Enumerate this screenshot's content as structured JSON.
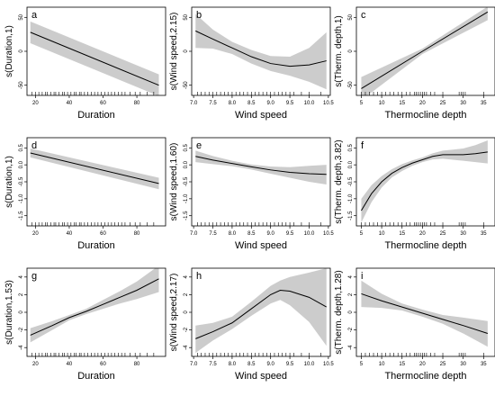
{
  "figure": {
    "background": "#ffffff",
    "band_color": "#cccccc",
    "line_color": "#000000"
  },
  "chart_data": [
    {
      "type": "line",
      "panel": "a",
      "ylabel": "s(Duration,1)",
      "xlabel": "Duration",
      "xlim": [
        15,
        97
      ],
      "ylim": [
        -65,
        65
      ],
      "xticks": [
        "20",
        "40",
        "60",
        "80"
      ],
      "xtick_values": [
        20,
        40,
        60,
        80
      ],
      "yticks": [
        "-50",
        "0",
        "50"
      ],
      "ytick_values": [
        -50,
        0,
        50
      ],
      "rug": [
        18,
        20,
        22,
        24,
        26,
        27,
        29,
        31,
        32,
        34,
        36,
        37,
        39,
        41,
        43,
        44,
        46,
        47,
        49,
        51,
        53,
        55,
        57,
        59,
        61,
        63,
        65,
        67,
        69,
        71,
        73,
        76,
        79,
        82,
        86,
        90
      ],
      "series": [
        {
          "x": [
            17,
            93
          ],
          "y": [
            28,
            -50
          ],
          "upper": [
            44,
            -34
          ],
          "lower": [
            12,
            -66
          ]
        }
      ]
    },
    {
      "type": "line",
      "panel": "b",
      "ylabel": "s(Wind speed,2.15)",
      "xlabel": "Wind speed",
      "xlim": [
        6.95,
        10.55
      ],
      "ylim": [
        -65,
        65
      ],
      "xticks": [
        "7.0",
        "7.5",
        "8.0",
        "8.5",
        "9.0",
        "9.5",
        "10.0",
        "10.5"
      ],
      "xtick_values": [
        7.0,
        7.5,
        8.0,
        8.5,
        9.0,
        9.5,
        10.0,
        10.5
      ],
      "yticks": [
        "-50",
        "0",
        "50"
      ],
      "ytick_values": [
        -50,
        0,
        50
      ],
      "rug": [
        7.1,
        7.2,
        7.3,
        7.4,
        7.5,
        7.6,
        7.7,
        7.8,
        7.9,
        8.0,
        8.1,
        8.2,
        8.3,
        8.4,
        8.5,
        8.6,
        8.7,
        8.8,
        8.9,
        9.0,
        9.1,
        9.2,
        9.3,
        9.4,
        9.5,
        9.6,
        9.8,
        10.0,
        10.3
      ],
      "series": [
        {
          "x": [
            7.05,
            7.5,
            8.0,
            8.5,
            9.0,
            9.5,
            10.0,
            10.45
          ],
          "y": [
            30,
            18,
            5,
            -8,
            -18,
            -22,
            -20,
            -14
          ],
          "upper": [
            55,
            32,
            14,
            2,
            -7,
            -8,
            5,
            28
          ],
          "lower": [
            5,
            4,
            -4,
            -18,
            -29,
            -36,
            -45,
            -56
          ]
        }
      ]
    },
    {
      "type": "line",
      "panel": "c",
      "ylabel": "s(Therm. depth,1)",
      "xlabel": "Thermocline depth",
      "xlim": [
        3.8,
        37.8
      ],
      "ylim": [
        -65,
        65
      ],
      "xticks": [
        "5",
        "10",
        "15",
        "20",
        "25",
        "30",
        "35"
      ],
      "xtick_values": [
        5,
        10,
        15,
        20,
        25,
        30,
        35
      ],
      "yticks": [
        "-50",
        "0",
        "50"
      ],
      "ytick_values": [
        -50,
        0,
        50
      ],
      "rug": [
        5,
        6,
        7,
        8,
        9,
        10,
        11,
        12,
        13,
        14,
        15,
        16,
        17,
        18,
        18.5,
        19,
        19.5,
        20,
        20.5,
        21,
        22,
        23,
        25,
        29,
        29.5,
        30,
        30.5,
        35
      ],
      "series": [
        {
          "x": [
            5,
            20,
            36
          ],
          "y": [
            -55,
            0,
            58
          ],
          "upper": [
            -38,
            4,
            66
          ],
          "lower": [
            -72,
            -4,
            46
          ]
        }
      ]
    },
    {
      "type": "line",
      "panel": "d",
      "ylabel": "s(Duration,1)",
      "xlabel": "Duration",
      "xlim": [
        15,
        97
      ],
      "ylim": [
        -1.8,
        0.8
      ],
      "xticks": [
        "20",
        "40",
        "60",
        "80"
      ],
      "xtick_values": [
        20,
        40,
        60,
        80
      ],
      "yticks": [
        "-1.5",
        "-1.0",
        "-0.5",
        "0.0",
        "0.5"
      ],
      "ytick_values": [
        -1.5,
        -1.0,
        -0.5,
        0.0,
        0.5
      ],
      "rug": [
        18,
        20,
        22,
        24,
        26,
        27,
        29,
        31,
        32,
        34,
        36,
        37,
        39,
        41,
        43,
        44,
        46,
        47,
        49,
        51,
        53,
        55,
        57,
        59,
        61,
        63,
        65,
        67,
        69,
        71,
        73,
        76,
        79,
        82,
        86,
        90
      ],
      "series": [
        {
          "x": [
            17,
            93
          ],
          "y": [
            0.35,
            -0.55
          ],
          "upper": [
            0.48,
            -0.38
          ],
          "lower": [
            0.22,
            -0.72
          ]
        }
      ]
    },
    {
      "type": "line",
      "panel": "e",
      "ylabel": "s(Wind speed,1.60)",
      "xlabel": "Wind speed",
      "xlim": [
        6.95,
        10.55
      ],
      "ylim": [
        -1.8,
        0.8
      ],
      "xticks": [
        "7.0",
        "7.5",
        "8.0",
        "8.5",
        "9.0",
        "9.5",
        "10.0",
        "10.5"
      ],
      "xtick_values": [
        7.0,
        7.5,
        8.0,
        8.5,
        9.0,
        9.5,
        10.0,
        10.5
      ],
      "yticks": [
        "-1.5",
        "-1.0",
        "-0.5",
        "0.0",
        "0.5"
      ],
      "ytick_values": [
        -1.5,
        -1.0,
        -0.5,
        0.0,
        0.5
      ],
      "rug": [
        7.1,
        7.2,
        7.3,
        7.4,
        7.5,
        7.6,
        7.7,
        7.8,
        7.9,
        8.0,
        8.1,
        8.2,
        8.3,
        8.4,
        8.5,
        8.6,
        8.7,
        8.8,
        8.9,
        9.0,
        9.1,
        9.2,
        9.3,
        9.4,
        9.5,
        9.6,
        9.8,
        10.0,
        10.3
      ],
      "series": [
        {
          "x": [
            7.05,
            7.5,
            8.0,
            8.5,
            9.0,
            9.5,
            10.0,
            10.45
          ],
          "y": [
            0.25,
            0.14,
            0.04,
            -0.06,
            -0.15,
            -0.22,
            -0.26,
            -0.28
          ],
          "upper": [
            0.42,
            0.26,
            0.12,
            0.01,
            -0.05,
            -0.07,
            -0.03,
            0.0
          ],
          "lower": [
            0.08,
            0.02,
            -0.04,
            -0.14,
            -0.26,
            -0.38,
            -0.5,
            -0.58
          ]
        }
      ]
    },
    {
      "type": "line",
      "panel": "f",
      "ylabel": "s(Therm. depth,3.82)",
      "xlabel": "Thermocline depth",
      "xlim": [
        3.8,
        37.8
      ],
      "ylim": [
        -1.8,
        0.8
      ],
      "xticks": [
        "5",
        "10",
        "15",
        "20",
        "25",
        "30",
        "35"
      ],
      "xtick_values": [
        5,
        10,
        15,
        20,
        25,
        30,
        35
      ],
      "yticks": [
        "-1.5",
        "-1.0",
        "-0.5",
        "0.0",
        "0.5"
      ],
      "ytick_values": [
        -1.5,
        -1.0,
        -0.5,
        0.0,
        0.5
      ],
      "rug": [
        5,
        6,
        7,
        8,
        9,
        10,
        11,
        12,
        13,
        14,
        15,
        16,
        17,
        18,
        18.5,
        19,
        19.5,
        20,
        20.5,
        21,
        22,
        23,
        25,
        29,
        29.5,
        30,
        30.5,
        35
      ],
      "series": [
        {
          "x": [
            5,
            7.5,
            10,
            12.5,
            15,
            17.5,
            20,
            22.5,
            25,
            27.5,
            30,
            33,
            36
          ],
          "y": [
            -1.35,
            -0.85,
            -0.5,
            -0.25,
            -0.08,
            0.05,
            0.15,
            0.25,
            0.3,
            0.3,
            0.3,
            0.33,
            0.38
          ],
          "upper": [
            -1.0,
            -0.6,
            -0.33,
            -0.13,
            0.02,
            0.13,
            0.22,
            0.34,
            0.42,
            0.45,
            0.48,
            0.58,
            0.72
          ],
          "lower": [
            -1.7,
            -1.1,
            -0.67,
            -0.37,
            -0.18,
            -0.03,
            0.08,
            0.16,
            0.18,
            0.15,
            0.12,
            0.08,
            0.04
          ]
        }
      ]
    },
    {
      "type": "line",
      "panel": "g",
      "ylabel": "s(Duration,1.53)",
      "xlabel": "Duration",
      "xlim": [
        15,
        97
      ],
      "ylim": [
        -5,
        5
      ],
      "xticks": [
        "20",
        "40",
        "60",
        "80"
      ],
      "xtick_values": [
        20,
        40,
        60,
        80
      ],
      "yticks": [
        "-4",
        "-2",
        "0",
        "2",
        "4"
      ],
      "ytick_values": [
        -4,
        -2,
        0,
        2,
        4
      ],
      "rug": [
        18,
        20,
        22,
        24,
        26,
        27,
        29,
        31,
        32,
        34,
        36,
        37,
        39,
        41,
        43,
        44,
        46,
        47,
        49,
        51,
        53,
        55,
        57,
        59,
        61,
        63,
        65,
        67,
        69,
        71,
        73,
        76,
        79,
        82,
        86,
        90
      ],
      "series": [
        {
          "x": [
            17,
            30,
            40,
            50,
            60,
            70,
            80,
            93
          ],
          "y": [
            -2.6,
            -1.5,
            -0.6,
            0.1,
            0.9,
            1.7,
            2.5,
            3.8
          ],
          "upper": [
            -1.8,
            -1.0,
            -0.3,
            0.4,
            1.4,
            2.4,
            3.5,
            5.3
          ],
          "lower": [
            -3.4,
            -2.0,
            -0.9,
            -0.2,
            0.4,
            1.0,
            1.5,
            2.3
          ]
        }
      ]
    },
    {
      "type": "line",
      "panel": "h",
      "ylabel": "s(Wind speed,2.17)",
      "xlabel": "Wind speed",
      "xlim": [
        6.95,
        10.55
      ],
      "ylim": [
        -5,
        5
      ],
      "xticks": [
        "7.0",
        "7.5",
        "8.0",
        "8.5",
        "9.0",
        "9.5",
        "10.0",
        "10.5"
      ],
      "xtick_values": [
        7.0,
        7.5,
        8.0,
        8.5,
        9.0,
        9.5,
        10.0,
        10.5
      ],
      "yticks": [
        "-4",
        "-2",
        "0",
        "2",
        "4"
      ],
      "ytick_values": [
        -4,
        -2,
        0,
        2,
        4
      ],
      "rug": [
        7.1,
        7.2,
        7.3,
        7.4,
        7.5,
        7.6,
        7.7,
        7.8,
        7.9,
        8.0,
        8.1,
        8.2,
        8.3,
        8.4,
        8.5,
        8.6,
        8.7,
        8.8,
        8.9,
        9.0,
        9.1,
        9.2,
        9.3,
        9.4,
        9.5,
        9.6,
        9.8,
        10.0,
        10.3
      ],
      "series": [
        {
          "x": [
            7.05,
            7.5,
            8.0,
            8.5,
            9.0,
            9.25,
            9.5,
            10.0,
            10.45
          ],
          "y": [
            -3.0,
            -2.2,
            -1.2,
            0.4,
            2.0,
            2.5,
            2.4,
            1.7,
            0.6
          ],
          "upper": [
            -1.5,
            -1.2,
            -0.5,
            1.2,
            3.0,
            3.6,
            4.0,
            4.5,
            5.0
          ],
          "lower": [
            -4.6,
            -3.2,
            -1.9,
            -0.4,
            1.0,
            1.4,
            0.8,
            -1.1,
            -3.8
          ]
        }
      ]
    },
    {
      "type": "line",
      "panel": "i",
      "ylabel": "s(Therm. depth,1.28)",
      "xlabel": "Thermocline depth",
      "xlim": [
        3.8,
        37.8
      ],
      "ylim": [
        -5,
        5
      ],
      "xticks": [
        "5",
        "10",
        "15",
        "20",
        "25",
        "30",
        "35"
      ],
      "xtick_values": [
        5,
        10,
        15,
        20,
        25,
        30,
        35
      ],
      "yticks": [
        "-4",
        "-2",
        "0",
        "2",
        "4"
      ],
      "ytick_values": [
        -4,
        -2,
        0,
        2,
        4
      ],
      "rug": [
        5,
        6,
        7,
        8,
        9,
        10,
        11,
        12,
        13,
        14,
        15,
        16,
        17,
        18,
        18.5,
        19,
        19.5,
        20,
        20.5,
        21,
        22,
        23,
        25,
        29,
        29.5,
        30,
        30.5,
        35
      ],
      "series": [
        {
          "x": [
            5,
            10,
            15,
            20,
            25,
            30,
            36
          ],
          "y": [
            2.1,
            1.3,
            0.6,
            -0.1,
            -0.8,
            -1.5,
            -2.4
          ],
          "upper": [
            3.6,
            2.1,
            1.0,
            0.3,
            -0.3,
            -0.6,
            -1.0
          ],
          "lower": [
            0.6,
            0.5,
            0.2,
            -0.5,
            -1.3,
            -2.4,
            -3.9
          ]
        }
      ]
    }
  ]
}
